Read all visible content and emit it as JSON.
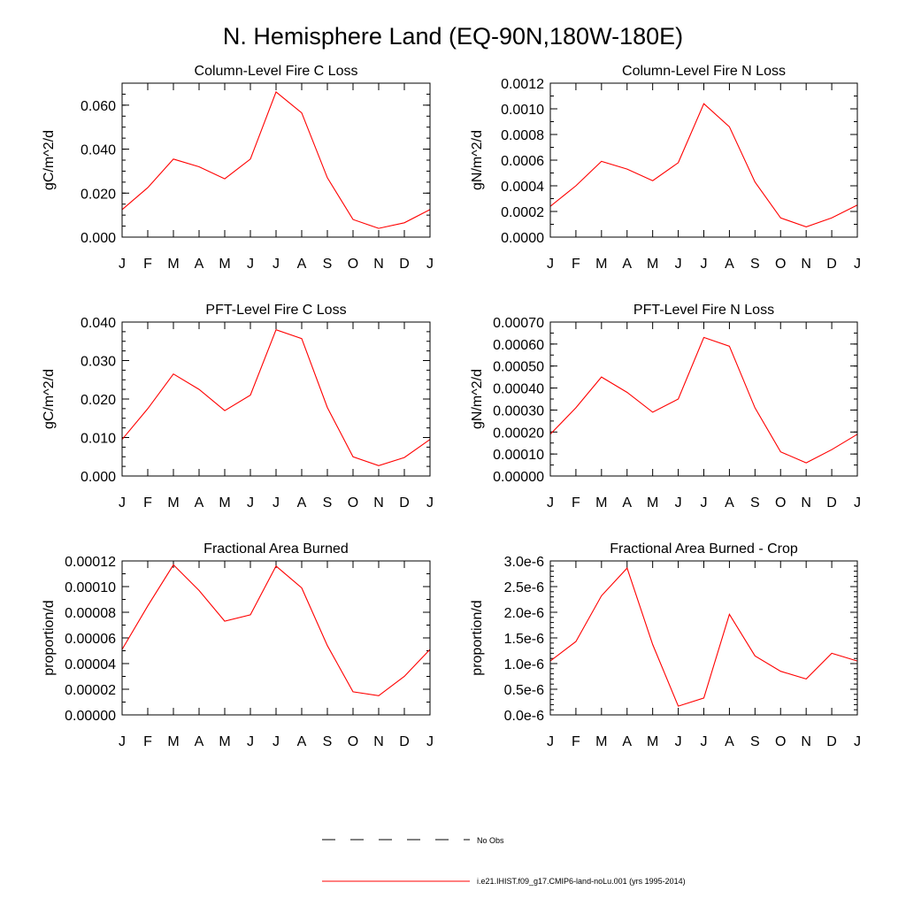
{
  "figure": {
    "title": "N. Hemisphere Land (EQ-90N,180W-180E)",
    "legend": [
      {
        "label": "No Obs",
        "color": "#000000",
        "dash": true
      },
      {
        "label": "i.e21.IHIST.f09_g17.CMIP6-land-noLu.001 (yrs 1995-2014)",
        "color": "#ff0000",
        "dash": false
      }
    ],
    "series_color": "#ff0000"
  },
  "chart_data": [
    {
      "type": "line",
      "title": "Column-Level Fire C Loss",
      "ylabel": "gC/m^2/d",
      "categories": [
        "J",
        "F",
        "M",
        "A",
        "M",
        "J",
        "J",
        "A",
        "S",
        "O",
        "N",
        "D",
        "J"
      ],
      "values": [
        0.0125,
        0.0225,
        0.0355,
        0.032,
        0.0265,
        0.0355,
        0.066,
        0.0565,
        0.027,
        0.008,
        0.004,
        0.0065,
        0.0125
      ],
      "ylim": [
        0,
        0.07
      ],
      "yticks": [
        0,
        0.02,
        0.04,
        0.06
      ],
      "yticklabels": [
        "0.000",
        "0.020",
        "0.040",
        "0.060"
      ],
      "yminor": 0.005
    },
    {
      "type": "line",
      "title": "Column-Level Fire N Loss",
      "ylabel": "gN/m^2/d",
      "categories": [
        "J",
        "F",
        "M",
        "A",
        "M",
        "J",
        "J",
        "A",
        "S",
        "O",
        "N",
        "D",
        "J"
      ],
      "values": [
        0.00024,
        0.0004,
        0.00059,
        0.00053,
        0.00044,
        0.00058,
        0.00104,
        0.00086,
        0.00043,
        0.00015,
        8e-05,
        0.00015,
        0.00025
      ],
      "ylim": [
        0,
        0.0012
      ],
      "yticks": [
        0,
        0.0002,
        0.0004,
        0.0006,
        0.0008,
        0.001,
        0.0012
      ],
      "yticklabels": [
        "0.0000",
        "0.0002",
        "0.0004",
        "0.0006",
        "0.0008",
        "0.0010",
        "0.0012"
      ],
      "yminor": 0.0001
    },
    {
      "type": "line",
      "title": "PFT-Level Fire C Loss",
      "ylabel": "gC/m^2/d",
      "categories": [
        "J",
        "F",
        "M",
        "A",
        "M",
        "J",
        "J",
        "A",
        "S",
        "O",
        "N",
        "D",
        "J"
      ],
      "values": [
        0.0095,
        0.0175,
        0.0265,
        0.0225,
        0.017,
        0.021,
        0.038,
        0.0357,
        0.0178,
        0.005,
        0.0027,
        0.0048,
        0.0095
      ],
      "ylim": [
        0,
        0.04
      ],
      "yticks": [
        0,
        0.01,
        0.02,
        0.03,
        0.04
      ],
      "yticklabels": [
        "0.000",
        "0.010",
        "0.020",
        "0.030",
        "0.040"
      ],
      "yminor": 0.0025
    },
    {
      "type": "line",
      "title": "PFT-Level Fire N Loss",
      "ylabel": "gN/m^2/d",
      "categories": [
        "J",
        "F",
        "M",
        "A",
        "M",
        "J",
        "J",
        "A",
        "S",
        "O",
        "N",
        "D",
        "J"
      ],
      "values": [
        0.00019,
        0.00031,
        0.00045,
        0.00038,
        0.00029,
        0.00035,
        0.00063,
        0.00059,
        0.00031,
        0.00011,
        6e-05,
        0.00012,
        0.00019
      ],
      "ylim": [
        0,
        0.0007
      ],
      "yticks": [
        0,
        0.0001,
        0.0002,
        0.0003,
        0.0004,
        0.0005,
        0.0006,
        0.0007
      ],
      "yticklabels": [
        "0.00000",
        "0.00010",
        "0.00020",
        "0.00030",
        "0.00040",
        "0.00050",
        "0.00060",
        "0.00070"
      ],
      "yminor": 5e-05
    },
    {
      "type": "line",
      "title": "Fractional Area Burned",
      "ylabel": "proportion/d",
      "categories": [
        "J",
        "F",
        "M",
        "A",
        "M",
        "J",
        "J",
        "A",
        "S",
        "O",
        "N",
        "D",
        "J"
      ],
      "values": [
        5.1e-05,
        8.5e-05,
        0.000117,
        9.7e-05,
        7.3e-05,
        7.8e-05,
        0.000116,
        9.9e-05,
        5.4e-05,
        1.8e-05,
        1.5e-05,
        3e-05,
        5.1e-05
      ],
      "ylim": [
        0,
        0.00012
      ],
      "yticks": [
        0,
        2e-05,
        4e-05,
        6e-05,
        8e-05,
        0.0001,
        0.00012
      ],
      "yticklabels": [
        "0.00000",
        "0.00002",
        "0.00004",
        "0.00006",
        "0.00008",
        "0.00010",
        "0.00012"
      ],
      "yminor": 1e-05
    },
    {
      "type": "line",
      "title": "Fractional Area Burned - Crop",
      "ylabel": "proportion/d",
      "categories": [
        "J",
        "F",
        "M",
        "A",
        "M",
        "J",
        "J",
        "A",
        "S",
        "O",
        "N",
        "D",
        "J"
      ],
      "values": [
        1.05e-06,
        1.43e-06,
        2.32e-06,
        2.86e-06,
        1.37e-06,
        1.7e-07,
        3.3e-07,
        1.96e-06,
        1.15e-06,
        8.5e-07,
        7e-07,
        1.2e-06,
        1.05e-06
      ],
      "ylim": [
        0,
        3e-06
      ],
      "yticks": [
        0,
        5e-07,
        1e-06,
        1.5e-06,
        2e-06,
        2.5e-06,
        3e-06
      ],
      "yticklabels": [
        "0.0e-6",
        "0.5e-6",
        "1.0e-6",
        "1.5e-6",
        "2.0e-6",
        "2.5e-6",
        "3.0e-6"
      ],
      "yminor": 1e-07
    }
  ]
}
